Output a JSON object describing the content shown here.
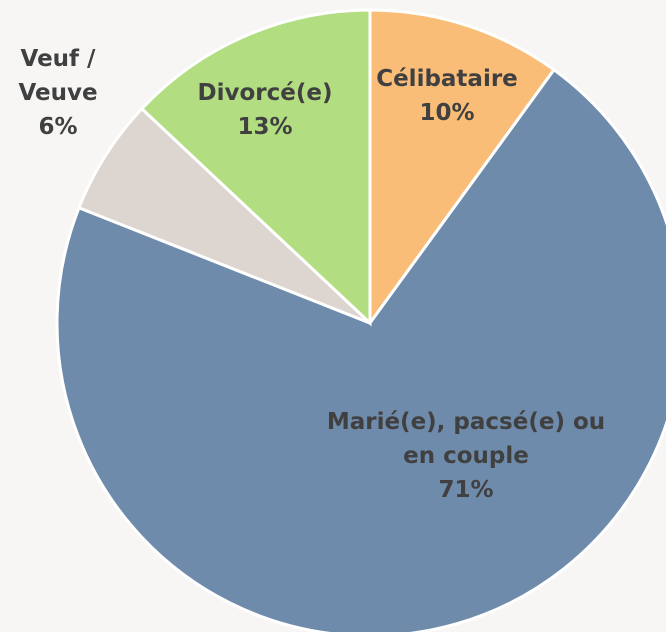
{
  "chart_data": {
    "type": "pie",
    "categories": [
      "Célibataire",
      "Marié(e), pacsé(e) ou en couple",
      "Veuf / Veuve",
      "Divorcé(e)"
    ],
    "values": [
      10,
      71,
      6,
      13
    ],
    "value_labels": [
      "10%",
      "71%",
      "6%",
      "13%"
    ],
    "colors": [
      "#f9bd78",
      "#6f8bab",
      "#dcd5d0",
      "#b2dd80"
    ]
  }
}
